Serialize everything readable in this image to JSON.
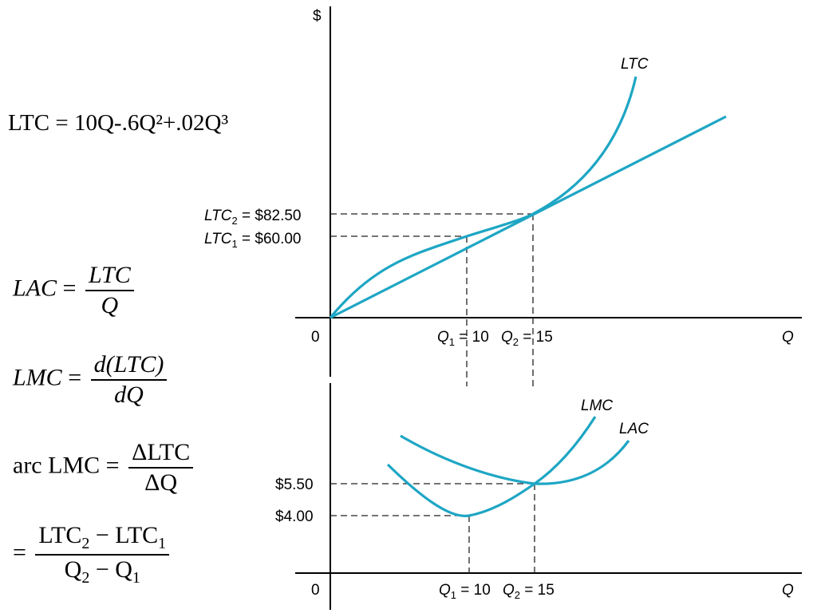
{
  "equations": {
    "ltc": "LTC = 10Q-.6Q²+.02Q³",
    "lac": {
      "lhs": "LAC",
      "num": "LTC",
      "den": "Q"
    },
    "lmc": {
      "lhs": "LMC",
      "num": "d(LTC)",
      "den": "dQ"
    },
    "arc": {
      "lhs": "arc LMC",
      "num": "ΔLTC",
      "den": "ΔQ"
    },
    "arc2": {
      "num_a": "LTC",
      "num_a_sub": "2",
      "num_b": "LTC",
      "num_b_sub": "1",
      "den_a": "Q",
      "den_a_sub": "2",
      "den_b": "Q",
      "den_b_sub": "1"
    }
  },
  "top_chart": {
    "y_axis_label": "$",
    "x_axis_label": "Q",
    "origin_label": "0",
    "curve_label": "LTC",
    "ltc2": {
      "name": "LTC",
      "sub": "2",
      "value": " = $82.50"
    },
    "ltc1": {
      "name": "LTC",
      "sub": "1",
      "value": " = $60.00"
    },
    "q1": {
      "name": "Q",
      "sub": "1",
      "value": " = 10"
    },
    "q2": {
      "name": "Q",
      "sub": "2",
      "value": " = 15"
    }
  },
  "bottom_chart": {
    "x_axis_label": "Q",
    "origin_label": "0",
    "lmc_label": "LMC",
    "lac_label": "LAC",
    "p_high": "$5.50",
    "p_low": "$4.00",
    "q1": {
      "name": "Q",
      "sub": "1",
      "value": " = 10"
    },
    "q2": {
      "name": "Q",
      "sub": "2",
      "value": " = 15"
    }
  },
  "colors": {
    "curve": "#1ea6c4",
    "axis": "#000000",
    "guide": "#222222"
  }
}
